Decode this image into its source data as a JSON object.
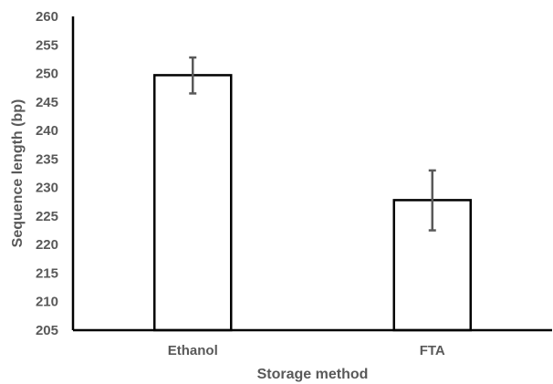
{
  "chart_data": {
    "type": "bar",
    "title": "",
    "xlabel": "Storage method",
    "ylabel": "Sequence length (bp)",
    "categories": [
      "Ethanol",
      "FTA"
    ],
    "values": [
      249.7,
      227.8
    ],
    "error_low": [
      246.5,
      222.5
    ],
    "error_high": [
      252.8,
      233.0
    ],
    "ylim": [
      205,
      260
    ],
    "yticks": [
      205,
      210,
      215,
      220,
      225,
      230,
      235,
      240,
      245,
      250,
      255,
      260
    ],
    "grid": false,
    "legend": "none",
    "colors": {
      "bar_fill": "#ffffff",
      "bar_stroke": "#000000",
      "axis": "#000000",
      "error_bar": "#595959",
      "text": "#595959"
    }
  }
}
